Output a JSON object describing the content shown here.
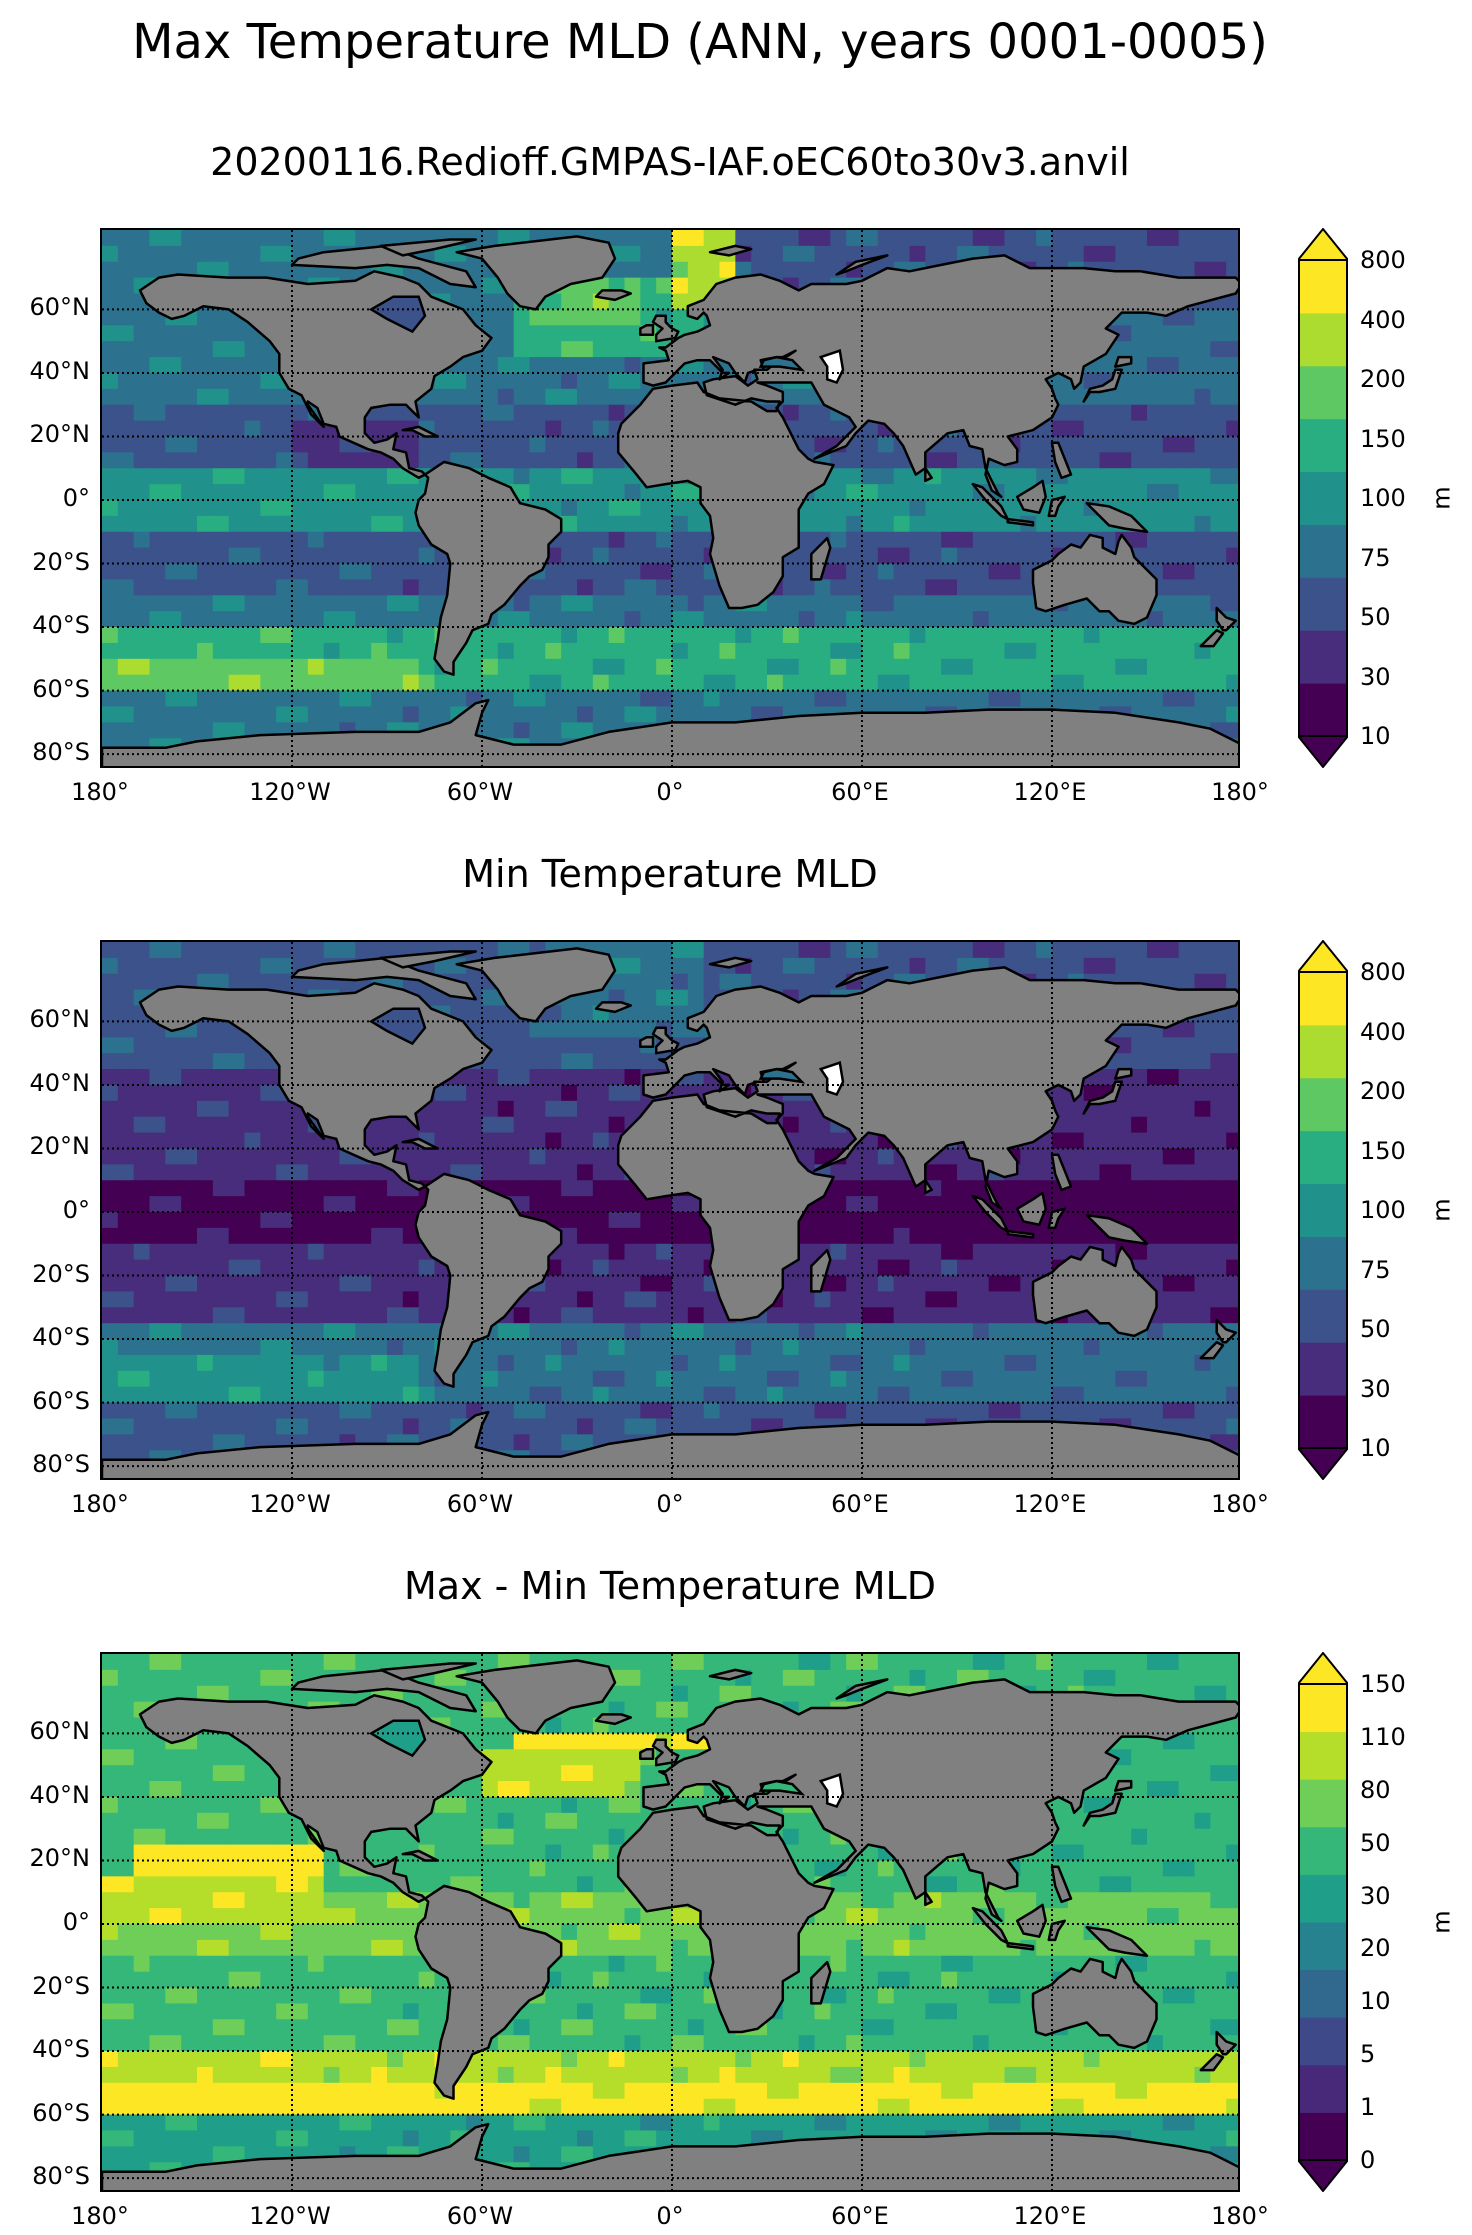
{
  "title": "Max Temperature MLD (ANN, years 0001-0005)",
  "panels": [
    {
      "title": "20200116.Redioff.GMPAS-IAF.oEC60to30v3.anvil",
      "colorbar": {
        "ticks": [
          "10",
          "30",
          "50",
          "75",
          "100",
          "150",
          "200",
          "400",
          "800"
        ],
        "unit": "m",
        "extend": "both"
      },
      "colors": [
        "#440154",
        "#472d7b",
        "#3b528b",
        "#2c728e",
        "#21918c",
        "#28ae80",
        "#5ec962",
        "#addc30",
        "#fde725"
      ]
    },
    {
      "title": "Min Temperature MLD",
      "colorbar": {
        "ticks": [
          "10",
          "30",
          "50",
          "75",
          "100",
          "150",
          "200",
          "400",
          "800"
        ],
        "unit": "m",
        "extend": "both"
      },
      "colors": [
        "#440154",
        "#472d7b",
        "#3b528b",
        "#2c728e",
        "#21918c",
        "#28ae80",
        "#5ec962",
        "#addc30",
        "#fde725"
      ]
    },
    {
      "title": "Max - Min Temperature MLD",
      "colorbar": {
        "ticks": [
          "0",
          "1",
          "5",
          "10",
          "20",
          "30",
          "50",
          "80",
          "110",
          "150"
        ],
        "unit": "m",
        "extend": "both"
      },
      "colors": [
        "#440154",
        "#482878",
        "#3e4989",
        "#31688e",
        "#26828e",
        "#1f9e89",
        "#35b779",
        "#6ece58",
        "#b5de2b",
        "#fde725"
      ]
    }
  ],
  "axes": {
    "lat_labels": [
      "60°N",
      "40°N",
      "20°N",
      "0°",
      "20°S",
      "40°S",
      "60°S",
      "80°S"
    ],
    "lon_labels": [
      "180°",
      "120°W",
      "60°W",
      "0°",
      "60°E",
      "120°E",
      "180°"
    ]
  },
  "chart_data": [
    {
      "type": "map",
      "title": "20200116.Redioff.GMPAS-IAF.oEC60to30v3.anvil",
      "variable": "Max Temperature MLD",
      "unit": "m",
      "levels": [
        10,
        30,
        50,
        75,
        100,
        150,
        200,
        400,
        800
      ],
      "lon_range": [
        -180,
        180
      ],
      "lat_range": [
        -85,
        85
      ]
    },
    {
      "type": "map",
      "title": "Min Temperature MLD",
      "variable": "Min Temperature MLD",
      "unit": "m",
      "levels": [
        10,
        30,
        50,
        75,
        100,
        150,
        200,
        400,
        800
      ],
      "lon_range": [
        -180,
        180
      ],
      "lat_range": [
        -85,
        85
      ]
    },
    {
      "type": "map",
      "title": "Max - Min Temperature MLD",
      "variable": "Max - Min Temperature MLD",
      "unit": "m",
      "levels": [
        0,
        1,
        5,
        10,
        20,
        30,
        50,
        80,
        110,
        150
      ],
      "lon_range": [
        -180,
        180
      ],
      "lat_range": [
        -85,
        85
      ]
    }
  ]
}
